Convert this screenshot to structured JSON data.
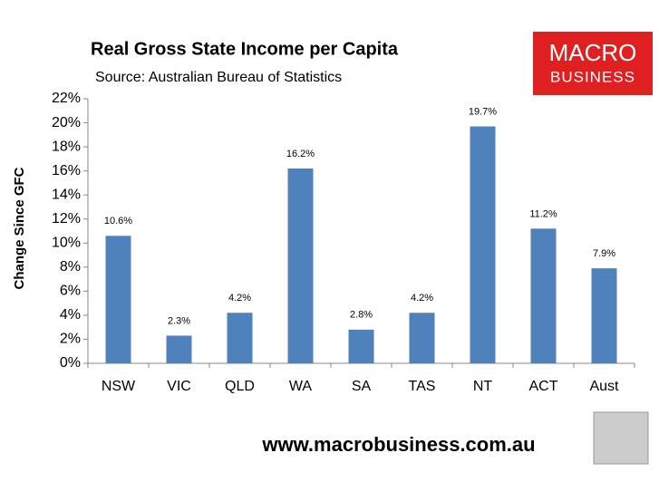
{
  "chart_data": {
    "type": "bar",
    "title": "Real Gross State Income per Capita",
    "subtitle": "Source: Australian Bureau of Statistics",
    "y_label": "Change Since GFC",
    "categories": [
      "NSW",
      "VIC",
      "QLD",
      "WA",
      "SA",
      "TAS",
      "NT",
      "ACT",
      "Aust"
    ],
    "values": [
      10.6,
      2.3,
      4.2,
      16.2,
      2.8,
      4.2,
      19.7,
      11.2,
      7.9
    ],
    "value_labels": [
      "10.6%",
      "2.3%",
      "4.2%",
      "16.2%",
      "2.8%",
      "4.2%",
      "19.7%",
      "11.2%",
      "7.9%"
    ],
    "color": "#4f81bd",
    "ylim": [
      0,
      22
    ],
    "yticks": [
      {
        "value": 0,
        "label": "0%"
      },
      {
        "value": 2,
        "label": "2%"
      },
      {
        "value": 4,
        "label": "4%"
      },
      {
        "value": 6,
        "label": "6%"
      },
      {
        "value": 8,
        "label": "8%"
      },
      {
        "value": 10,
        "label": "10%"
      },
      {
        "value": 12,
        "label": "12%"
      },
      {
        "value": 14,
        "label": "14%"
      },
      {
        "value": 16,
        "label": "16%"
      },
      {
        "value": 18,
        "label": "18%"
      },
      {
        "value": 20,
        "label": "20%"
      },
      {
        "value": 22,
        "label": "22%"
      }
    ],
    "grid": false
  },
  "logo": {
    "line1": "MACRO",
    "line2": "BUSINESS"
  },
  "footer": "www.macrobusiness.com.au"
}
